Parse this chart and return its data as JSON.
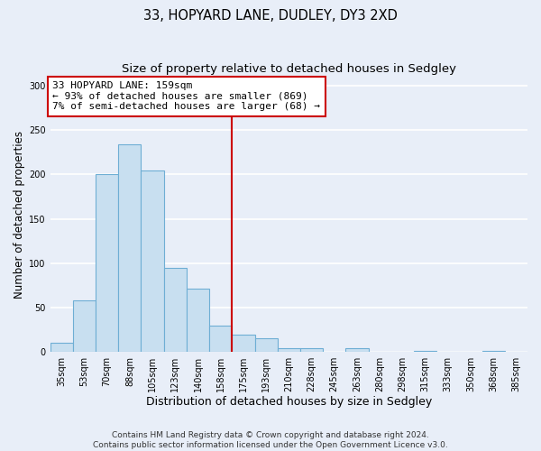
{
  "title": "33, HOPYARD LANE, DUDLEY, DY3 2XD",
  "subtitle": "Size of property relative to detached houses in Sedgley",
  "xlabel": "Distribution of detached houses by size in Sedgley",
  "ylabel": "Number of detached properties",
  "bar_labels": [
    "35sqm",
    "53sqm",
    "70sqm",
    "88sqm",
    "105sqm",
    "123sqm",
    "140sqm",
    "158sqm",
    "175sqm",
    "193sqm",
    "210sqm",
    "228sqm",
    "245sqm",
    "263sqm",
    "280sqm",
    "298sqm",
    "315sqm",
    "333sqm",
    "350sqm",
    "368sqm",
    "385sqm"
  ],
  "bar_values": [
    10,
    58,
    200,
    234,
    205,
    95,
    71,
    29,
    19,
    15,
    4,
    4,
    0,
    4,
    0,
    0,
    1,
    0,
    0,
    1,
    0
  ],
  "bar_color": "#c8dff0",
  "bar_edge_color": "#6eaed4",
  "vline_index": 7,
  "vline_color": "#cc0000",
  "annotation_line1": "33 HOPYARD LANE: 159sqm",
  "annotation_line2": "← 93% of detached houses are smaller (869)",
  "annotation_line3": "7% of semi-detached houses are larger (68) →",
  "annotation_box_facecolor": "#ffffff",
  "annotation_box_edgecolor": "#cc0000",
  "ylim": [
    0,
    310
  ],
  "yticks": [
    0,
    50,
    100,
    150,
    200,
    250,
    300
  ],
  "footer_line1": "Contains HM Land Registry data © Crown copyright and database right 2024.",
  "footer_line2": "Contains public sector information licensed under the Open Government Licence v3.0.",
  "bg_color": "#e8eef8",
  "plot_bg_color": "#e8eef8",
  "grid_color": "#ffffff",
  "title_fontsize": 10.5,
  "subtitle_fontsize": 9.5,
  "xlabel_fontsize": 9,
  "ylabel_fontsize": 8.5,
  "tick_fontsize": 7,
  "annotation_fontsize": 8,
  "footer_fontsize": 6.5
}
